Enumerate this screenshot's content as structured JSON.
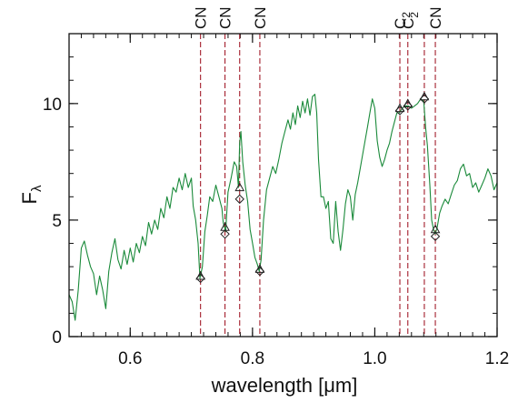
{
  "chart_data": {
    "type": "line",
    "title": "",
    "xlabel": "wavelength [μm]",
    "ylabel": "F",
    "ylabel_sub": "λ",
    "xlim": [
      0.5,
      1.2
    ],
    "ylim": [
      0,
      13
    ],
    "x_ticks": [
      0.6,
      0.8,
      1.0,
      1.2
    ],
    "x_tick_labels": [
      "0.6",
      "0.8",
      "1.0",
      "1.2"
    ],
    "y_ticks": [
      0,
      5,
      10
    ],
    "y_tick_labels": [
      "0",
      "5",
      "10"
    ],
    "x_minor_step": 0.02,
    "y_minor_step": 1,
    "grid": false,
    "series": [
      {
        "color": "#1a8a3a",
        "points": [
          [
            0.5,
            1.8
          ],
          [
            0.505,
            1.5
          ],
          [
            0.51,
            0.7
          ],
          [
            0.515,
            2.0
          ],
          [
            0.52,
            3.8
          ],
          [
            0.525,
            4.1
          ],
          [
            0.53,
            3.5
          ],
          [
            0.535,
            3.0
          ],
          [
            0.54,
            2.7
          ],
          [
            0.545,
            1.8
          ],
          [
            0.55,
            2.6
          ],
          [
            0.555,
            2.0
          ],
          [
            0.56,
            1.2
          ],
          [
            0.565,
            2.8
          ],
          [
            0.57,
            3.6
          ],
          [
            0.575,
            4.2
          ],
          [
            0.58,
            3.3
          ],
          [
            0.585,
            2.9
          ],
          [
            0.59,
            3.7
          ],
          [
            0.595,
            3.1
          ],
          [
            0.6,
            3.8
          ],
          [
            0.605,
            3.2
          ],
          [
            0.61,
            4.0
          ],
          [
            0.615,
            3.6
          ],
          [
            0.62,
            4.3
          ],
          [
            0.625,
            3.9
          ],
          [
            0.63,
            4.9
          ],
          [
            0.635,
            4.4
          ],
          [
            0.64,
            5.0
          ],
          [
            0.645,
            4.6
          ],
          [
            0.65,
            5.5
          ],
          [
            0.655,
            5.1
          ],
          [
            0.66,
            6.0
          ],
          [
            0.665,
            5.5
          ],
          [
            0.67,
            6.4
          ],
          [
            0.675,
            6.2
          ],
          [
            0.68,
            6.8
          ],
          [
            0.685,
            6.3
          ],
          [
            0.69,
            7.0
          ],
          [
            0.695,
            6.4
          ],
          [
            0.7,
            6.8
          ],
          [
            0.703,
            5.6
          ],
          [
            0.707,
            5.0
          ],
          [
            0.711,
            4.0
          ],
          [
            0.714,
            2.5
          ],
          [
            0.718,
            3.0
          ],
          [
            0.722,
            4.5
          ],
          [
            0.726,
            5.2
          ],
          [
            0.73,
            6.0
          ],
          [
            0.735,
            5.8
          ],
          [
            0.74,
            6.5
          ],
          [
            0.745,
            6.0
          ],
          [
            0.75,
            5.5
          ],
          [
            0.752,
            4.9
          ],
          [
            0.754,
            4.7
          ],
          [
            0.756,
            4.5
          ],
          [
            0.76,
            6.2
          ],
          [
            0.765,
            6.8
          ],
          [
            0.77,
            7.5
          ],
          [
            0.774,
            7.3
          ],
          [
            0.777,
            6.4
          ],
          [
            0.779,
            8.3
          ],
          [
            0.781,
            8.8
          ],
          [
            0.784,
            7.5
          ],
          [
            0.788,
            6.5
          ],
          [
            0.792,
            5.8
          ],
          [
            0.796,
            4.6
          ],
          [
            0.8,
            4.0
          ],
          [
            0.804,
            3.4
          ],
          [
            0.808,
            3.1
          ],
          [
            0.811,
            2.8
          ],
          [
            0.814,
            3.3
          ],
          [
            0.818,
            5.0
          ],
          [
            0.823,
            6.3
          ],
          [
            0.828,
            6.8
          ],
          [
            0.833,
            7.3
          ],
          [
            0.838,
            7.0
          ],
          [
            0.843,
            7.6
          ],
          [
            0.848,
            8.3
          ],
          [
            0.853,
            8.8
          ],
          [
            0.858,
            9.3
          ],
          [
            0.862,
            8.9
          ],
          [
            0.866,
            9.6
          ],
          [
            0.87,
            9.1
          ],
          [
            0.874,
            9.9
          ],
          [
            0.878,
            9.4
          ],
          [
            0.882,
            10.1
          ],
          [
            0.886,
            9.6
          ],
          [
            0.89,
            10.2
          ],
          [
            0.894,
            9.5
          ],
          [
            0.898,
            10.3
          ],
          [
            0.902,
            10.4
          ],
          [
            0.905,
            9.6
          ],
          [
            0.908,
            7.6
          ],
          [
            0.912,
            6.0
          ],
          [
            0.916,
            6.0
          ],
          [
            0.92,
            5.5
          ],
          [
            0.924,
            5.8
          ],
          [
            0.928,
            4.2
          ],
          [
            0.932,
            4.0
          ],
          [
            0.936,
            5.8
          ],
          [
            0.94,
            4.5
          ],
          [
            0.944,
            3.7
          ],
          [
            0.948,
            4.6
          ],
          [
            0.952,
            5.7
          ],
          [
            0.956,
            6.3
          ],
          [
            0.96,
            6.0
          ],
          [
            0.964,
            5.0
          ],
          [
            0.968,
            6.1
          ],
          [
            0.972,
            6.6
          ],
          [
            0.976,
            7.2
          ],
          [
            0.98,
            7.8
          ],
          [
            0.984,
            8.4
          ],
          [
            0.988,
            9.0
          ],
          [
            0.992,
            9.6
          ],
          [
            0.996,
            10.2
          ],
          [
            1.0,
            9.8
          ],
          [
            1.004,
            8.4
          ],
          [
            1.008,
            7.7
          ],
          [
            1.012,
            7.3
          ],
          [
            1.016,
            7.6
          ],
          [
            1.02,
            8.0
          ],
          [
            1.024,
            8.3
          ],
          [
            1.028,
            8.8
          ],
          [
            1.032,
            9.2
          ],
          [
            1.036,
            9.6
          ],
          [
            1.04,
            9.6
          ],
          [
            1.045,
            9.8
          ],
          [
            1.05,
            9.9
          ],
          [
            1.055,
            9.9
          ],
          [
            1.06,
            9.8
          ],
          [
            1.065,
            9.9
          ],
          [
            1.07,
            10.0
          ],
          [
            1.075,
            10.2
          ],
          [
            1.08,
            10.1
          ],
          [
            1.083,
            9.0
          ],
          [
            1.086,
            8.2
          ],
          [
            1.09,
            6.5
          ],
          [
            1.093,
            5.0
          ],
          [
            1.096,
            4.6
          ],
          [
            1.099,
            4.4
          ],
          [
            1.102,
            4.7
          ],
          [
            1.106,
            5.3
          ],
          [
            1.11,
            5.6
          ],
          [
            1.115,
            5.9
          ],
          [
            1.12,
            5.7
          ],
          [
            1.125,
            6.1
          ],
          [
            1.13,
            6.5
          ],
          [
            1.135,
            6.7
          ],
          [
            1.14,
            7.2
          ],
          [
            1.145,
            7.4
          ],
          [
            1.15,
            6.9
          ],
          [
            1.155,
            7.0
          ],
          [
            1.16,
            6.4
          ],
          [
            1.165,
            6.6
          ],
          [
            1.17,
            6.2
          ],
          [
            1.175,
            6.5
          ],
          [
            1.18,
            6.8
          ],
          [
            1.185,
            7.2
          ],
          [
            1.19,
            6.9
          ],
          [
            1.195,
            6.3
          ],
          [
            1.2,
            6.6
          ]
        ]
      }
    ],
    "triangle_markers": [
      [
        0.715,
        2.6
      ],
      [
        0.755,
        4.7
      ],
      [
        0.779,
        6.4
      ],
      [
        0.812,
        2.9
      ],
      [
        1.041,
        9.8
      ],
      [
        1.054,
        10.0
      ],
      [
        1.081,
        10.3
      ],
      [
        1.099,
        4.6
      ]
    ],
    "diamond_markers": [
      [
        0.715,
        2.5
      ],
      [
        0.755,
        4.4
      ],
      [
        0.779,
        5.9
      ],
      [
        0.812,
        2.8
      ],
      [
        1.041,
        9.7
      ],
      [
        1.054,
        9.9
      ],
      [
        1.081,
        10.2
      ],
      [
        1.099,
        4.3
      ]
    ],
    "band_lines": [
      {
        "x": 0.715,
        "label": "CN"
      },
      {
        "x": 0.755,
        "label": "CN"
      },
      {
        "x": 0.779,
        "label": ""
      },
      {
        "x": 0.812,
        "label": "CN"
      },
      {
        "x": 1.041,
        "label": "C",
        "sub": "2"
      },
      {
        "x": 1.054,
        "label": "C",
        "sub": "2"
      },
      {
        "x": 1.081,
        "label": ""
      },
      {
        "x": 1.099,
        "label": "CN"
      }
    ],
    "colors": {
      "spectrum": "#1a8a3a",
      "band_line": "#a31d2b",
      "marker": "#222222",
      "axes": "#111111"
    }
  }
}
